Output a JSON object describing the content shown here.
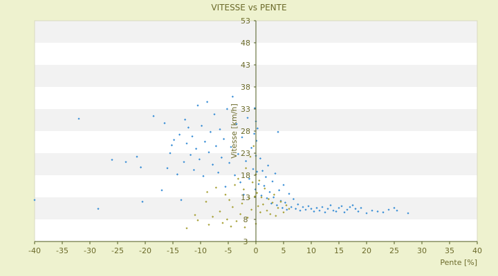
{
  "chart_data": {
    "type": "scatter",
    "title": "VITESSE vs PENTE",
    "xlabel": "Pente [%]",
    "ylabel": "Vitesse [km/h]",
    "xlim": [
      -40,
      40
    ],
    "ylim": [
      3,
      53
    ],
    "x_ticks": [
      "-40",
      "-35",
      "-30",
      "-25",
      "-20",
      "-15",
      "-10",
      "-5",
      "0",
      "5",
      "10",
      "15",
      "20",
      "25",
      "30",
      "35",
      "40"
    ],
    "y_ticks": [
      "3",
      "8",
      "13",
      "18",
      "23",
      "28",
      "33",
      "38",
      "43",
      "48",
      "53"
    ],
    "grid": "horizontal bands",
    "legend": "none",
    "colors": {
      "background": "#eef2cf",
      "plot_band_light": "#ffffff",
      "plot_band_dark": "#f2f2f2",
      "text": "#6b6a2a",
      "axis": "#4d5a1e",
      "series_blue": "#3b8fd6",
      "series_olive": "#a8a23a"
    },
    "series": [
      {
        "color": "blue",
        "points": [
          [
            -40.0,
            12.4
          ],
          [
            -32.0,
            30.8
          ],
          [
            -28.5,
            10.4
          ],
          [
            -26.0,
            21.5
          ],
          [
            -23.5,
            21.0
          ],
          [
            -21.5,
            22.2
          ],
          [
            -20.8,
            19.8
          ],
          [
            -20.5,
            12.0
          ],
          [
            -18.5,
            31.4
          ],
          [
            -17.0,
            14.6
          ],
          [
            -16.5,
            29.8
          ],
          [
            -16.0,
            19.6
          ],
          [
            -15.5,
            23.0
          ],
          [
            -15.2,
            24.8
          ],
          [
            -14.8,
            26.0
          ],
          [
            -14.2,
            18.2
          ],
          [
            -13.8,
            27.2
          ],
          [
            -13.5,
            12.4
          ],
          [
            -13.0,
            21.0
          ],
          [
            -12.8,
            30.6
          ],
          [
            -12.5,
            25.2
          ],
          [
            -12.2,
            28.8
          ],
          [
            -11.8,
            22.6
          ],
          [
            -11.5,
            26.8
          ],
          [
            -11.2,
            19.2
          ],
          [
            -10.8,
            24.0
          ],
          [
            -10.5,
            33.8
          ],
          [
            -10.2,
            21.6
          ],
          [
            -9.8,
            29.2
          ],
          [
            -9.5,
            17.8
          ],
          [
            -9.2,
            25.6
          ],
          [
            -8.8,
            34.6
          ],
          [
            -8.5,
            23.2
          ],
          [
            -8.2,
            27.8
          ],
          [
            -7.8,
            20.4
          ],
          [
            -7.5,
            31.8
          ],
          [
            -7.2,
            24.6
          ],
          [
            -6.8,
            18.6
          ],
          [
            -6.5,
            28.4
          ],
          [
            -6.2,
            22.0
          ],
          [
            -5.8,
            26.2
          ],
          [
            -5.5,
            15.4
          ],
          [
            -5.2,
            33.0
          ],
          [
            -4.8,
            20.8
          ],
          [
            -4.5,
            24.4
          ],
          [
            -4.2,
            35.8
          ],
          [
            -3.8,
            18.0
          ],
          [
            -3.5,
            29.6
          ],
          [
            -3.2,
            22.8
          ],
          [
            -2.8,
            16.4
          ],
          [
            -2.5,
            26.6
          ],
          [
            -2.2,
            13.6
          ],
          [
            -1.8,
            21.2
          ],
          [
            -1.5,
            31.0
          ],
          [
            -1.2,
            17.2
          ],
          [
            -0.8,
            24.2
          ],
          [
            -0.5,
            19.4
          ],
          [
            -0.3,
            27.4
          ],
          [
            -0.2,
            33.2
          ],
          [
            -0.1,
            14.8
          ],
          [
            0.0,
            30.2
          ],
          [
            0.0,
            22.4
          ],
          [
            0.1,
            25.8
          ],
          [
            0.2,
            18.8
          ],
          [
            0.3,
            28.6
          ],
          [
            0.5,
            16.0
          ],
          [
            0.8,
            21.8
          ],
          [
            1.0,
            13.4
          ],
          [
            1.2,
            19.0
          ],
          [
            1.5,
            15.6
          ],
          [
            1.8,
            17.6
          ],
          [
            2.0,
            12.8
          ],
          [
            2.2,
            20.2
          ],
          [
            2.5,
            14.2
          ],
          [
            2.8,
            11.6
          ],
          [
            3.0,
            16.6
          ],
          [
            3.2,
            13.0
          ],
          [
            3.5,
            18.4
          ],
          [
            3.8,
            11.2
          ],
          [
            4.0,
            27.8
          ],
          [
            4.2,
            14.6
          ],
          [
            4.5,
            12.2
          ],
          [
            4.8,
            10.6
          ],
          [
            5.0,
            15.8
          ],
          [
            5.3,
            11.8
          ],
          [
            5.6,
            10.2
          ],
          [
            6.0,
            13.8
          ],
          [
            6.4,
            10.8
          ],
          [
            6.8,
            12.6
          ],
          [
            7.2,
            10.4
          ],
          [
            7.6,
            11.4
          ],
          [
            8.0,
            10.0
          ],
          [
            8.5,
            10.8
          ],
          [
            9.0,
            10.2
          ],
          [
            9.5,
            11.0
          ],
          [
            10.0,
            10.4
          ],
          [
            10.5,
            9.8
          ],
          [
            11.0,
            10.6
          ],
          [
            11.5,
            10.0
          ],
          [
            12.0,
            10.8
          ],
          [
            12.5,
            9.6
          ],
          [
            13.0,
            10.4
          ],
          [
            13.5,
            11.2
          ],
          [
            14.0,
            10.0
          ],
          [
            14.5,
            9.8
          ],
          [
            15.0,
            10.6
          ],
          [
            15.5,
            11.0
          ],
          [
            16.0,
            9.6
          ],
          [
            16.5,
            10.2
          ],
          [
            17.0,
            10.8
          ],
          [
            17.5,
            11.2
          ],
          [
            18.0,
            10.4
          ],
          [
            18.5,
            9.8
          ],
          [
            19.0,
            10.6
          ],
          [
            20.0,
            9.4
          ],
          [
            21.0,
            10.0
          ],
          [
            22.0,
            9.8
          ],
          [
            23.0,
            9.6
          ],
          [
            24.0,
            10.2
          ],
          [
            25.0,
            10.6
          ],
          [
            25.5,
            10.0
          ],
          [
            27.5,
            9.4
          ]
        ]
      },
      {
        "color": "olive",
        "points": [
          [
            -12.5,
            6.0
          ],
          [
            -11.0,
            9.0
          ],
          [
            -10.5,
            7.8
          ],
          [
            -9.0,
            12.0
          ],
          [
            -8.8,
            14.2
          ],
          [
            -8.5,
            6.8
          ],
          [
            -7.8,
            8.6
          ],
          [
            -7.2,
            15.2
          ],
          [
            -6.5,
            9.8
          ],
          [
            -6.0,
            7.2
          ],
          [
            -5.5,
            13.6
          ],
          [
            -5.2,
            8.0
          ],
          [
            -4.8,
            12.4
          ],
          [
            -4.5,
            6.4
          ],
          [
            -4.2,
            10.8
          ],
          [
            -3.8,
            15.8
          ],
          [
            -3.5,
            7.6
          ],
          [
            -3.2,
            17.2
          ],
          [
            -2.8,
            9.2
          ],
          [
            -2.5,
            11.6
          ],
          [
            -2.2,
            14.8
          ],
          [
            -2.0,
            6.2
          ],
          [
            -1.8,
            19.6
          ],
          [
            -1.5,
            8.4
          ],
          [
            -1.2,
            12.8
          ],
          [
            -1.0,
            22.2
          ],
          [
            -0.8,
            10.2
          ],
          [
            -0.6,
            16.4
          ],
          [
            -0.4,
            24.6
          ],
          [
            -0.2,
            13.2
          ],
          [
            0.0,
            18.2
          ],
          [
            0.0,
            7.0
          ],
          [
            0.2,
            14.0
          ],
          [
            0.4,
            11.0
          ],
          [
            0.6,
            16.8
          ],
          [
            0.8,
            9.6
          ],
          [
            1.0,
            13.0
          ],
          [
            1.3,
            11.4
          ],
          [
            1.6,
            15.0
          ],
          [
            2.0,
            10.0
          ],
          [
            2.3,
            12.6
          ],
          [
            2.6,
            9.2
          ],
          [
            3.0,
            11.8
          ],
          [
            3.3,
            13.6
          ],
          [
            3.6,
            8.8
          ],
          [
            4.0,
            10.6
          ],
          [
            4.5,
            12.0
          ],
          [
            5.0,
            9.6
          ],
          [
            5.5,
            11.2
          ],
          [
            6.0,
            10.4
          ]
        ]
      }
    ]
  }
}
